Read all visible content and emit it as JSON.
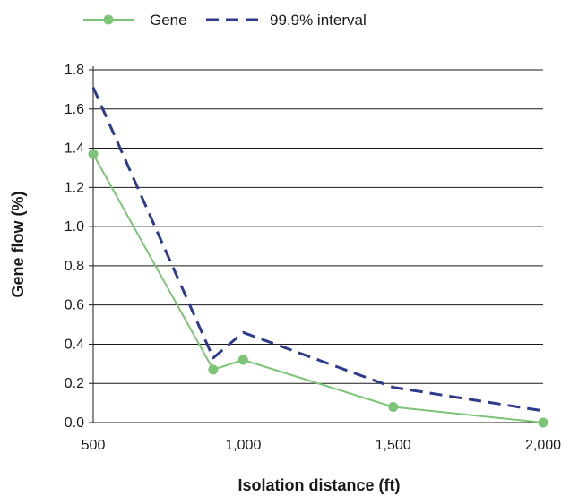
{
  "chart_data": {
    "type": "line",
    "xlabel": "Isolation distance (ft)",
    "ylabel": "Gene flow (%)",
    "x_tick_labels": [
      "500",
      "1,000",
      "1,500",
      "2,000"
    ],
    "x_ticks": [
      500,
      1000,
      1500,
      2000
    ],
    "y_tick_labels": [
      "0.0",
      "0.2",
      "0.4",
      "0.6",
      "0.8",
      "1.0",
      "1.2",
      "1.4",
      "1.6",
      "1.8"
    ],
    "y_ticks": [
      0,
      0.2,
      0.4,
      0.6,
      0.8,
      1.0,
      1.2,
      1.4,
      1.6,
      1.8
    ],
    "xlim": [
      500,
      2000
    ],
    "ylim": [
      0,
      1.8
    ],
    "grid": "horizontal",
    "legend_position": "top",
    "series": [
      {
        "name": "Gene",
        "style": "solid-with-markers",
        "color": "#7cc576",
        "x": [
          500,
          900,
          1000,
          1500,
          2000
        ],
        "y": [
          1.37,
          0.27,
          0.32,
          0.08,
          0.0
        ]
      },
      {
        "name": "99.9% interval",
        "style": "dashed",
        "color": "#2e3a8c",
        "x": [
          500,
          900,
          1000,
          1500,
          2000
        ],
        "y": [
          1.71,
          0.33,
          0.46,
          0.18,
          0.06
        ]
      }
    ]
  }
}
